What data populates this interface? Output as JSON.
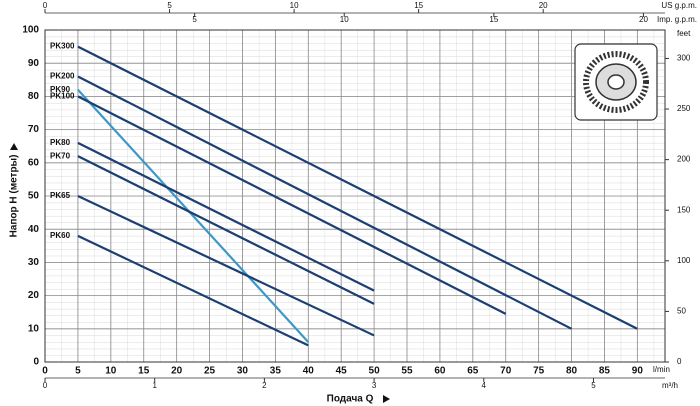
{
  "chart_data": {
    "type": "line",
    "ylabel": "Напор H (метры)",
    "xlabel": "Подача Q",
    "x_unit": "l/min",
    "xlim": [
      0,
      94.2
    ],
    "xticks": [
      0,
      5,
      10,
      15,
      20,
      25,
      30,
      35,
      40,
      45,
      50,
      55,
      60,
      65,
      70,
      75,
      80,
      85,
      90
    ],
    "ylim": [
      0,
      100
    ],
    "yticks": [
      0,
      10,
      20,
      30,
      40,
      50,
      60,
      70,
      80,
      90,
      100
    ],
    "y2_unit": "feet",
    "y2lim": [
      0,
      328.1
    ],
    "y2ticks": [
      0,
      50,
      100,
      150,
      200,
      250,
      300
    ],
    "extra_x_axes": [
      {
        "unit": "m³/h",
        "position": "bottom",
        "lim": [
          0,
          5.652
        ],
        "ticks": [
          0,
          1,
          2,
          3,
          4,
          5
        ]
      },
      {
        "unit": "US g.p.m.",
        "position": "top",
        "lim": [
          0,
          24.89
        ],
        "ticks": [
          0,
          5,
          10,
          15,
          20
        ]
      },
      {
        "unit": "Imp. g.p.m.",
        "position": "top",
        "lim": [
          0,
          20.72
        ],
        "ticks": [
          5,
          10,
          15,
          20
        ]
      }
    ],
    "grid": true,
    "series": [
      {
        "name": "PK300",
        "color": "#1b3f73",
        "x": [
          5,
          90
        ],
        "values": [
          95,
          10
        ]
      },
      {
        "name": "PK200",
        "color": "#1b3f73",
        "x": [
          5,
          80
        ],
        "values": [
          86,
          10
        ]
      },
      {
        "name": "PK90",
        "color": "#3c98c8",
        "x": [
          5,
          40
        ],
        "values": [
          82,
          6
        ]
      },
      {
        "name": "PK100",
        "color": "#1b3f73",
        "x": [
          5,
          70
        ],
        "values": [
          80,
          14.5
        ]
      },
      {
        "name": "PK80",
        "color": "#1b3f73",
        "x": [
          5,
          50
        ],
        "values": [
          66,
          21.5
        ]
      },
      {
        "name": "PK70",
        "color": "#1b3f73",
        "x": [
          5,
          50
        ],
        "values": [
          62,
          17.5
        ]
      },
      {
        "name": "PK65",
        "color": "#1b3f73",
        "x": [
          5,
          50
        ],
        "values": [
          50,
          8
        ]
      },
      {
        "name": "PK60",
        "color": "#1b3f73",
        "x": [
          5,
          40
        ],
        "values": [
          38,
          5
        ]
      }
    ]
  }
}
